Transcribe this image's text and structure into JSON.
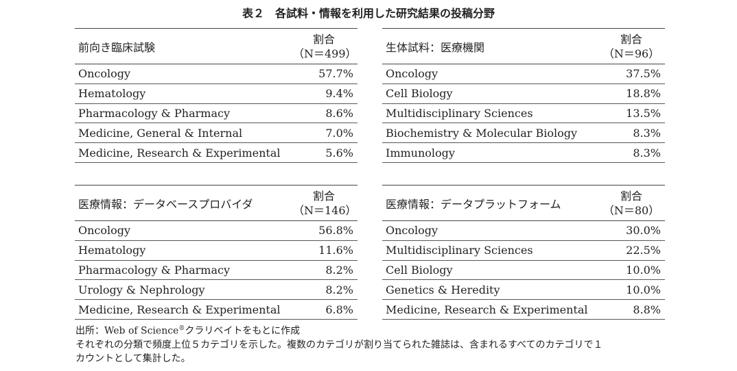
{
  "title": "表２　各試料・情報を利用した研究結果の投稿分野",
  "tables": [
    {
      "heading": "前向き臨床試験",
      "ratio_label": "割合",
      "n_label": "（N＝499）",
      "rows": [
        {
          "field": "Oncology",
          "value": "57.7%"
        },
        {
          "field": "Hematology",
          "value": "9.4%"
        },
        {
          "field": "Pharmacology & Pharmacy",
          "value": "8.6%"
        },
        {
          "field": "Medicine, General & Internal",
          "value": "7.0%"
        },
        {
          "field": "Medicine, Research & Experimental",
          "value": "5.6%"
        }
      ]
    },
    {
      "heading": "生体試料：医療機関",
      "ratio_label": "割合",
      "n_label": "（N＝96）",
      "rows": [
        {
          "field": "Oncology",
          "value": "37.5%"
        },
        {
          "field": "Cell Biology",
          "value": "18.8%"
        },
        {
          "field": "Multidisciplinary Sciences",
          "value": "13.5%"
        },
        {
          "field": "Biochemistry & Molecular Biology",
          "value": "8.3%"
        },
        {
          "field": "Immunology",
          "value": "8.3%"
        }
      ]
    },
    {
      "heading": "医療情報：データベースプロバイダ",
      "ratio_label": "割合",
      "n_label": "（N＝146）",
      "rows": [
        {
          "field": "Oncology",
          "value": "56.8%"
        },
        {
          "field": "Hematology",
          "value": "11.6%"
        },
        {
          "field": "Pharmacology & Pharmacy",
          "value": "8.2%"
        },
        {
          "field": "Urology & Nephrology",
          "value": "8.2%"
        },
        {
          "field": "Medicine, Research & Experimental",
          "value": "6.8%"
        }
      ]
    },
    {
      "heading": "医療情報：データプラットフォーム",
      "ratio_label": "割合",
      "n_label": "（N＝80）",
      "rows": [
        {
          "field": "Oncology",
          "value": "30.0%"
        },
        {
          "field": "Multidisciplinary Sciences",
          "value": "22.5%"
        },
        {
          "field": "Cell Biology",
          "value": "10.0%"
        },
        {
          "field": "Genetics & Heredity",
          "value": "10.0%"
        },
        {
          "field": "Medicine, Research & Experimental",
          "value": "8.8%"
        }
      ]
    }
  ],
  "notes": {
    "source_prefix": "出所：Web of Science",
    "source_mark": "®",
    "source_suffix": "クラリベイトをもとに作成",
    "line2": "それぞれの分類で頻度上位５カテゴリを示した。複数のカテゴリが割り当てられた雑誌は、含まれるすべてのカテゴリで１",
    "line3": "カウントとして集計した。"
  }
}
